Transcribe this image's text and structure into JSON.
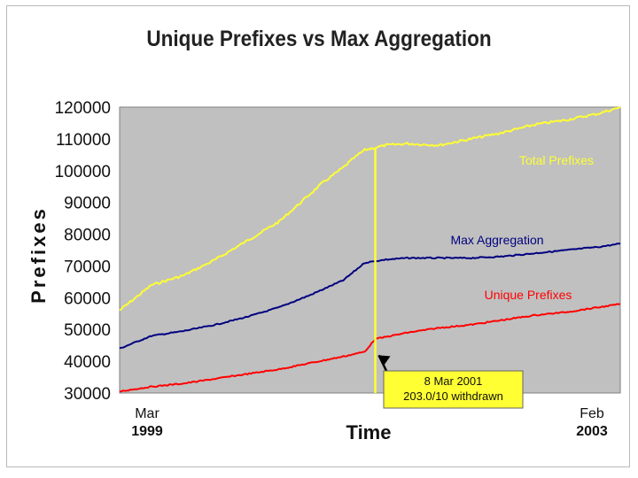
{
  "chart_data": {
    "type": "line",
    "title": "Unique Prefixes vs Max Aggregation",
    "xlabel": "Time",
    "ylabel": "Prefixes",
    "x_start": {
      "month": "Mar",
      "year": "1999"
    },
    "x_end": {
      "month": "Feb",
      "year": "2003"
    },
    "xlim": [
      "1999-03",
      "2003-02"
    ],
    "ylim": [
      30000,
      120000
    ],
    "yticks": [
      30000,
      40000,
      50000,
      60000,
      70000,
      80000,
      90000,
      100000,
      110000,
      120000
    ],
    "plot_background": "#c0c0c0",
    "grid": false,
    "series": [
      {
        "name": "Total Prefixes",
        "color": "#ffff33",
        "x": [
          "1999-03",
          "1999-06",
          "1999-09",
          "1999-12",
          "2000-03",
          "2000-06",
          "2000-08",
          "2000-10",
          "2000-12",
          "2001-01",
          "2001-02",
          "2001-04",
          "2001-06",
          "2001-09",
          "2001-12",
          "2002-03",
          "2002-06",
          "2002-09",
          "2002-12",
          "2003-02"
        ],
        "values": [
          56000,
          64000,
          67000,
          72000,
          78000,
          84000,
          90000,
          96000,
          101000,
          104000,
          106500,
          108000,
          108500,
          108000,
          110000,
          112000,
          114500,
          116000,
          118000,
          120000
        ]
      },
      {
        "name": "Max Aggregation",
        "color": "#000080",
        "x": [
          "1999-03",
          "1999-06",
          "1999-09",
          "1999-12",
          "2000-03",
          "2000-06",
          "2000-09",
          "2000-12",
          "2001-02",
          "2001-04",
          "2001-06",
          "2001-09",
          "2001-12",
          "2002-03",
          "2002-06",
          "2002-09",
          "2002-12",
          "2003-02"
        ],
        "values": [
          44000,
          48000,
          49500,
          51500,
          54000,
          57000,
          61000,
          65500,
          71000,
          72000,
          72500,
          72500,
          72500,
          73000,
          74000,
          75000,
          76000,
          77000
        ]
      },
      {
        "name": "Unique Prefixes",
        "color": "#ff0000",
        "x": [
          "1999-03",
          "1999-06",
          "1999-09",
          "1999-12",
          "2000-03",
          "2000-06",
          "2000-09",
          "2000-12",
          "2001-02",
          "2001-03",
          "2001-06",
          "2001-09",
          "2001-12",
          "2002-03",
          "2002-06",
          "2002-09",
          "2002-12",
          "2003-02"
        ],
        "values": [
          30500,
          32000,
          33000,
          34500,
          36000,
          37500,
          39500,
          41500,
          43000,
          47000,
          49000,
          50500,
          51500,
          53000,
          54500,
          55500,
          57000,
          58000
        ]
      }
    ],
    "annotations": [
      {
        "kind": "vertical-line",
        "x": "2001-03",
        "color": "#ffff33",
        "y_from": 30000,
        "y_to": 107000
      },
      {
        "kind": "callout",
        "lines": [
          "8 Mar 2001",
          "203.0/10 withdrawn"
        ],
        "background": "#ffff33",
        "arrow_to": {
          "x": "2001-03",
          "y": 43000
        }
      }
    ]
  }
}
